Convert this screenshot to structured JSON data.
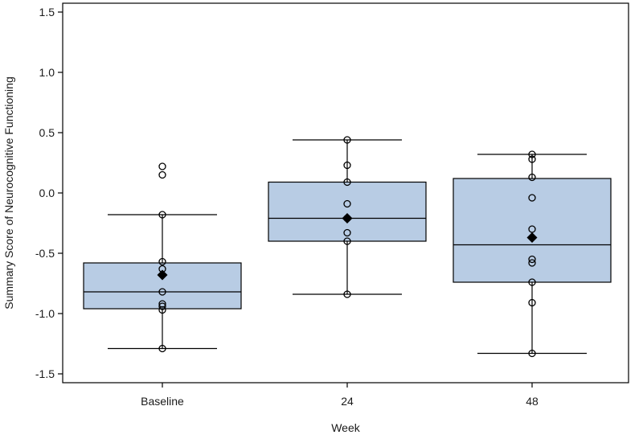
{
  "chart_data": {
    "type": "box",
    "xlabel": "Week",
    "ylabel": "Summary Score of Neurocognitive Functioning",
    "ylim": [
      -1.55,
      1.55
    ],
    "yticks": [
      -1.5,
      -1.0,
      -0.5,
      0.0,
      0.5,
      1.0,
      1.5
    ],
    "ytick_labels": [
      "-1.5",
      "-1.0",
      "-0.5",
      "0.0",
      "0.5",
      "1.0",
      "1.5"
    ],
    "grid": false,
    "categories": [
      "Baseline",
      "24",
      "48"
    ],
    "groups": [
      {
        "label": "Baseline",
        "whisker_low": -1.29,
        "q1": -0.96,
        "median": -0.82,
        "q3": -0.58,
        "whisker_high": -0.18,
        "mean": -0.68,
        "points": [
          0.22,
          0.15,
          -0.18,
          -0.57,
          -0.63,
          -0.82,
          -0.92,
          -0.94,
          -0.97,
          -1.29
        ]
      },
      {
        "label": "24",
        "whisker_low": -0.84,
        "q1": -0.4,
        "median": -0.21,
        "q3": 0.09,
        "whisker_high": 0.44,
        "mean": -0.21,
        "points": [
          0.44,
          0.23,
          0.09,
          -0.09,
          -0.21,
          -0.33,
          -0.4,
          -0.84
        ]
      },
      {
        "label": "48",
        "whisker_low": -1.33,
        "q1": -0.74,
        "median": -0.43,
        "q3": 0.12,
        "whisker_high": 0.32,
        "mean": -0.37,
        "points": [
          0.32,
          0.28,
          0.13,
          -0.04,
          -0.3,
          -0.55,
          -0.58,
          -0.74,
          -0.91,
          -1.33
        ]
      }
    ],
    "colors": {
      "box_fill": "#b8cce4",
      "stroke": "#000000"
    }
  }
}
